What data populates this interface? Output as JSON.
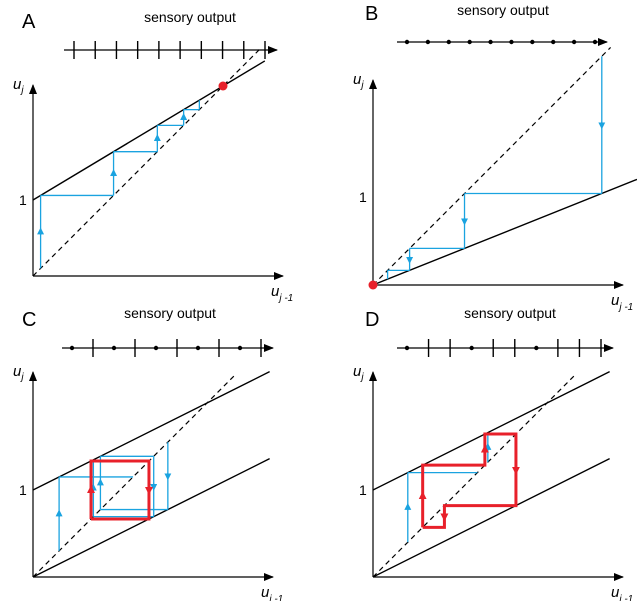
{
  "panels": [
    {
      "id": "A",
      "label": "A",
      "strip_title": "sensory output",
      "strip_pattern": [
        "bar",
        "bar",
        "bar",
        "bar",
        "bar",
        "bar",
        "bar",
        "bar",
        "bar",
        "bar"
      ],
      "y_axis": {
        "main": "u",
        "sub": "j"
      },
      "x_axis": {
        "main": "u",
        "sub": "j -1"
      },
      "tick_label": "1",
      "lines": [
        {
          "intercept": 1,
          "slope": 0.6,
          "x_range": [
            0,
            3.05
          ]
        }
      ],
      "fixed_point": [
        2.5,
        2.5
      ],
      "cobweb_points": [
        [
          0.1,
          0.1
        ],
        [
          0.1,
          1.06
        ],
        [
          1.06,
          1.06
        ],
        [
          1.06,
          1.636
        ],
        [
          1.636,
          1.636
        ],
        [
          1.636,
          1.982
        ],
        [
          1.982,
          1.982
        ],
        [
          1.982,
          2.189
        ],
        [
          2.189,
          2.189
        ],
        [
          2.189,
          2.313
        ]
      ],
      "red_cycle": []
    },
    {
      "id": "B",
      "label": "B",
      "strip_title": "sensory output",
      "strip_pattern": [
        "dot",
        "dot",
        "dot",
        "dot",
        "dot",
        "dot",
        "dot",
        "dot",
        "dot",
        "dot"
      ],
      "y_axis": {
        "main": "u",
        "sub": "j"
      },
      "x_axis": {
        "main": "u",
        "sub": "j -1"
      },
      "tick_label": "1",
      "lines": [
        {
          "intercept": 0,
          "slope": 0.4,
          "x_range": [
            0,
            3.0
          ]
        }
      ],
      "fixed_point": [
        0,
        0
      ],
      "cobweb_points": [
        [
          2.6,
          2.6
        ],
        [
          2.6,
          1.04
        ],
        [
          1.04,
          1.04
        ],
        [
          1.04,
          0.416
        ],
        [
          0.416,
          0.416
        ],
        [
          0.416,
          0.166
        ],
        [
          0.166,
          0.166
        ],
        [
          0.166,
          0.066
        ]
      ],
      "red_cycle": []
    },
    {
      "id": "C",
      "label": "C",
      "strip_title": "sensory output",
      "strip_pattern": [
        "dot",
        "bar",
        "dot",
        "bar",
        "dot",
        "bar",
        "dot",
        "bar",
        "dot",
        "bar"
      ],
      "y_axis": {
        "main": "u",
        "sub": "j"
      },
      "x_axis": {
        "main": "u",
        "sub": "j -1"
      },
      "tick_label": "1",
      "lines": [
        {
          "intercept": 1,
          "slope": 0.5,
          "x_range": [
            0,
            2.72
          ]
        },
        {
          "intercept": 0,
          "slope": 0.5,
          "x_range": [
            0,
            2.72
          ]
        }
      ],
      "fixed_point": null,
      "cobweb_points": [
        [
          1.55,
          1.55
        ],
        [
          1.55,
          0.775
        ],
        [
          0.775,
          0.775
        ],
        [
          0.775,
          1.3875
        ],
        [
          1.3875,
          1.3875
        ],
        [
          1.3875,
          0.694
        ],
        [
          0.694,
          0.694
        ],
        [
          0.694,
          1.347
        ]
      ],
      "cobweb_extra": [
        [
          0.3,
          0.3
        ],
        [
          0.3,
          1.15
        ],
        [
          1.15,
          1.15
        ]
      ],
      "red_cycle": [
        [
          0.667,
          0.667
        ],
        [
          0.667,
          1.333
        ],
        [
          1.333,
          1.333
        ],
        [
          1.333,
          0.667
        ],
        [
          0.667,
          0.667
        ]
      ]
    },
    {
      "id": "D",
      "label": "D",
      "strip_title": "sensory output",
      "strip_pattern": [
        "dot",
        "bar",
        "bar",
        "dot",
        "bar",
        "bar",
        "dot",
        "bar",
        "bar",
        "bar"
      ],
      "y_axis": {
        "main": "u",
        "sub": "j"
      },
      "x_axis": {
        "main": "u",
        "sub": "j -1"
      },
      "tick_label": "1",
      "lines": [
        {
          "intercept": 1,
          "slope": 0.5,
          "x_range": [
            0,
            2.72
          ]
        },
        {
          "intercept": 0,
          "slope": 0.5,
          "x_range": [
            0,
            2.72
          ]
        }
      ],
      "fixed_point": null,
      "cobweb_points": [
        [
          0.4,
          0.4
        ],
        [
          0.4,
          1.2
        ],
        [
          1.2,
          1.2
        ]
      ],
      "cobweb_extra": [
        [
          1.32,
          1.32
        ],
        [
          1.32,
          1.66
        ]
      ],
      "red_cycle": [
        [
          0.571,
          0.571
        ],
        [
          0.571,
          1.286
        ],
        [
          1.286,
          1.286
        ],
        [
          1.286,
          1.643
        ],
        [
          1.643,
          1.643
        ],
        [
          1.643,
          0.821
        ],
        [
          0.821,
          0.821
        ],
        [
          0.821,
          0.571
        ],
        [
          0.571,
          0.571
        ]
      ]
    }
  ],
  "colors": {
    "cobweb": "#1aa3e0",
    "cycle": "#e8202a",
    "fixed_point": "#e8202a",
    "lines": "#000000"
  }
}
